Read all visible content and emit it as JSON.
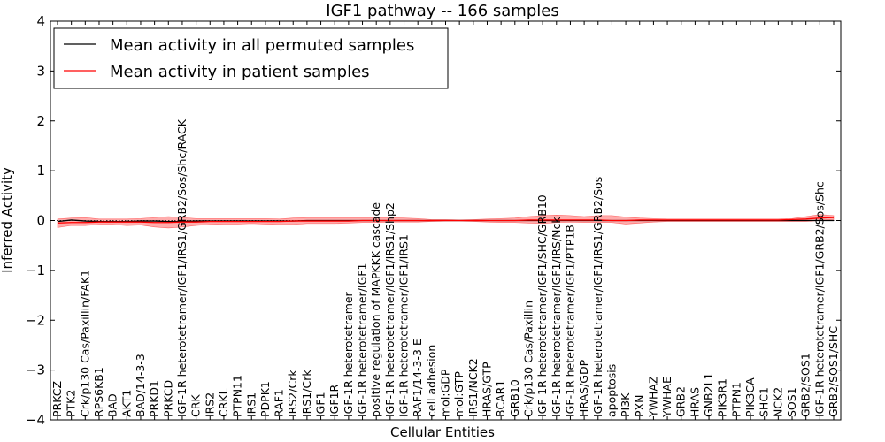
{
  "chart_data": {
    "type": "line",
    "title": "IGF1 pathway -- 166 samples",
    "xlabel": "Cellular Entities",
    "ylabel": "Inferred Activity",
    "ylim": [
      -4,
      4
    ],
    "yticks": [
      "4",
      "3",
      "2",
      "1",
      "0",
      "−1",
      "−2",
      "−3",
      "−4"
    ],
    "ytick_values": [
      4,
      3,
      2,
      1,
      0,
      -1,
      -2,
      -3,
      -4
    ],
    "legend_position": "top-left",
    "colors": {
      "permuted": "#000000",
      "patient": "#ff0000",
      "band": "#ff9090"
    },
    "categories": [
      "PRKCZ",
      "PTK2",
      "Crk/p130 Cas/Paxillin/FAK1",
      "RPS6KB1",
      "BAD",
      "AKT1",
      "BAD/14-3-3",
      "PRKD1",
      "PRKCD",
      "IGF-1R heterotetramer/IGF1/IRS1/GRB2/Sos/Shc/RACK",
      "CRK",
      "IRS2",
      "CRKL",
      "PTPN11",
      "IRS1",
      "PDPK1",
      "RAF1",
      "IRS2/Crk",
      "IRS1/Crk",
      "IGF1",
      "IGF1R",
      "IGF-1R heterotetramer",
      "IGF-1R heterotetramer/IGF1",
      "positive regulation of MAPKKK cascade",
      "IGF-1R heterotetramer/IGF1/IRS1/Shp2",
      "IGF-1R heterotetramer/IGF1/IRS1",
      "RAF1/14-3-3 E",
      "cell adhesion",
      "mol:GDP",
      "mol:GTP",
      "IRS1/NCK2",
      "HRAS/GTP",
      "BCAR1",
      "GRB10",
      "Crk/p130 Cas/Paxillin",
      "IGF-1R heterotetramer/IGF1/SHC/GRB10",
      "IGF-1R heterotetramer/IGF1/IRS/Nck",
      "IGF-1R heterotetramer/IGF1/PTP1B",
      "HRAS/GDP",
      "IGF-1R heterotetramer/IGF1/IRS1/GRB2/Sos",
      "apoptosis",
      "PI3K",
      "PXN",
      "YWHAZ",
      "YWHAE",
      "GRB2",
      "HRAS",
      "GNB2L1",
      "PIK3R1",
      "PTPN1",
      "PIK3CA",
      "SHC1",
      "NCK2",
      "SOS1",
      "GRB2/SOS1",
      "IGF-1R heterotetramer/IGF1/GRB2/Sos/Shc",
      "GRB2/SOS1/SHC"
    ],
    "series": [
      {
        "name": "Mean activity in all permuted samples",
        "color": "#000000",
        "values": [
          -0.02,
          0.01,
          -0.01,
          -0.02,
          -0.02,
          -0.02,
          -0.01,
          -0.01,
          -0.02,
          -0.02,
          -0.01,
          -0.01,
          -0.01,
          -0.01,
          -0.01,
          -0.01,
          -0.01,
          -0.01,
          0.0,
          0.0,
          0.0,
          0.0,
          0.0,
          0.0,
          0.0,
          0.0,
          0.0,
          0.0,
          0.0,
          0.0,
          0.0,
          0.0,
          0.0,
          0.0,
          0.0,
          0.0,
          0.0,
          0.0,
          0.0,
          0.0,
          0.0,
          0.0,
          0.0,
          0.0,
          0.0,
          0.0,
          0.0,
          0.0,
          0.0,
          0.0,
          0.0,
          0.0,
          0.0,
          0.0,
          0.0,
          0.0,
          0.0
        ]
      },
      {
        "name": "Mean activity in patient samples",
        "color": "#ff0000",
        "values": [
          -0.05,
          -0.04,
          -0.04,
          -0.03,
          -0.03,
          -0.03,
          -0.03,
          -0.04,
          -0.04,
          -0.03,
          -0.03,
          -0.02,
          -0.02,
          -0.02,
          -0.02,
          -0.02,
          -0.02,
          -0.01,
          -0.01,
          -0.01,
          -0.01,
          -0.01,
          0.0,
          0.0,
          0.0,
          0.0,
          0.0,
          0.0,
          0.0,
          0.0,
          0.0,
          0.0,
          0.0,
          0.0,
          0.01,
          0.01,
          0.01,
          0.01,
          0.01,
          0.01,
          0.0,
          0.0,
          0.01,
          0.01,
          0.01,
          0.01,
          0.01,
          0.01,
          0.01,
          0.01,
          0.01,
          0.01,
          0.01,
          0.02,
          0.03,
          0.05,
          0.06
        ],
        "band_upper": [
          0.03,
          0.05,
          0.06,
          0.03,
          0.03,
          0.03,
          0.04,
          0.06,
          0.08,
          0.06,
          0.04,
          0.04,
          0.04,
          0.04,
          0.04,
          0.04,
          0.03,
          0.05,
          0.06,
          0.06,
          0.06,
          0.06,
          0.06,
          0.06,
          0.06,
          0.05,
          0.04,
          0.02,
          0.02,
          0.01,
          0.02,
          0.03,
          0.04,
          0.05,
          0.08,
          0.1,
          0.11,
          0.1,
          0.08,
          0.1,
          0.1,
          0.07,
          0.05,
          0.04,
          0.03,
          0.03,
          0.03,
          0.03,
          0.03,
          0.03,
          0.03,
          0.03,
          0.03,
          0.04,
          0.08,
          0.12,
          0.1
        ],
        "band_lower": [
          -0.14,
          -0.1,
          -0.1,
          -0.08,
          -0.08,
          -0.1,
          -0.09,
          -0.13,
          -0.15,
          -0.13,
          -0.1,
          -0.08,
          -0.07,
          -0.07,
          -0.06,
          -0.07,
          -0.08,
          -0.08,
          -0.06,
          -0.06,
          -0.06,
          -0.05,
          -0.04,
          -0.04,
          -0.03,
          -0.03,
          -0.03,
          -0.02,
          -0.01,
          -0.01,
          -0.02,
          -0.03,
          -0.04,
          -0.04,
          -0.05,
          -0.06,
          -0.04,
          -0.03,
          -0.04,
          -0.04,
          -0.04,
          -0.07,
          -0.05,
          -0.03,
          -0.02,
          -0.02,
          -0.02,
          -0.02,
          -0.02,
          -0.02,
          -0.02,
          -0.02,
          -0.02,
          -0.02,
          -0.02,
          0.0,
          0.02
        ]
      }
    ]
  }
}
